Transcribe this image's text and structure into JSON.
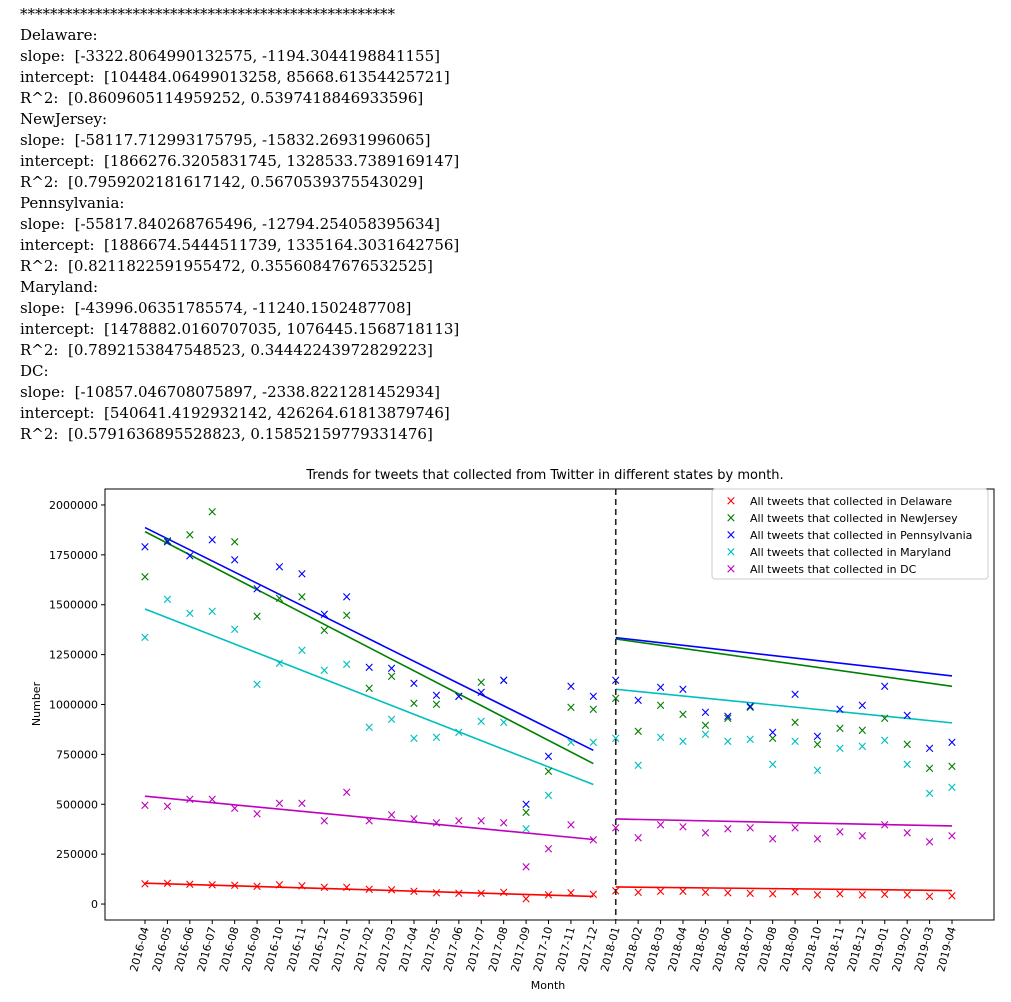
{
  "output": {
    "separator": "**************************************************",
    "blocks": [
      {
        "state": "Delaware:",
        "slope": "slope:  [-3322.8064990132575, -1194.3044198841155]",
        "intercept": "intercept:  [104484.06499013258, 85668.61354425721]",
        "r2": "R^2:  [0.8609605114959252, 0.5397418846933596]"
      },
      {
        "state": "NewJersey:",
        "slope": "slope:  [-58117.712993175795, -15832.26931996065]",
        "intercept": "intercept:  [1866276.3205831745, 1328533.7389169147]",
        "r2": "R^2:  [0.7959202181617142, 0.5670539375543029]"
      },
      {
        "state": "Pennsylvania:",
        "slope": "slope:  [-55817.840268765496, -12794.254058395634]",
        "intercept": "intercept:  [1886674.5444511739, 1335164.3031642756]",
        "r2": "R^2:  [0.8211822591955472, 0.35560847676532525]"
      },
      {
        "state": "Maryland:",
        "slope": "slope:  [-43996.06351785574, -11240.1502487708]",
        "intercept": "intercept:  [1478882.0160707035, 1076445.1568718113]",
        "r2": "R^2:  [0.7892153847548523, 0.34442243972829223]"
      },
      {
        "state": "DC:",
        "slope": "slope:  [-10857.046708075897, -2338.8221281452934]",
        "intercept": "intercept:  [540641.4192932142, 426264.61813879746]",
        "r2": "R^2:  [0.5791636895528823, 0.15852159779331476]"
      }
    ]
  },
  "chart_data": {
    "type": "scatter",
    "title": "Trends for tweets that collected from Twitter in different states by month.",
    "xlabel": "Month",
    "ylabel": "Number",
    "ylim": [
      -80000,
      2080000
    ],
    "yticks": [
      0,
      250000,
      500000,
      750000,
      1000000,
      1250000,
      1500000,
      1750000,
      2000000
    ],
    "ytick_labels": [
      "0",
      "250000",
      "500000",
      "750000",
      "1000000",
      "1250000",
      "1500000",
      "1750000",
      "2000000"
    ],
    "categories": [
      "2016-04",
      "2016-05",
      "2016-06",
      "2016-07",
      "2016-08",
      "2016-09",
      "2016-10",
      "2016-11",
      "2016-12",
      "2017-01",
      "2017-02",
      "2017-03",
      "2017-04",
      "2017-05",
      "2017-06",
      "2017-07",
      "2017-08",
      "2017-09",
      "2017-10",
      "2017-11",
      "2017-12",
      "2018-01",
      "2018-02",
      "2018-03",
      "2018-04",
      "2018-05",
      "2018-06",
      "2018-07",
      "2018-08",
      "2018-09",
      "2018-10",
      "2018-11",
      "2018-12",
      "2019-01",
      "2019-02",
      "2019-03",
      "2019-04"
    ],
    "split_index": 21,
    "legend_position": "top-right",
    "marker": "×",
    "series": [
      {
        "name": "All tweets that collected in Delaware",
        "color": "#ff0000",
        "values": [
          100000,
          103000,
          97000,
          95000,
          92000,
          88000,
          95000,
          90000,
          83000,
          82000,
          73000,
          71000,
          62000,
          55000,
          52000,
          52000,
          57000,
          25000,
          45000,
          55000,
          47000,
          65000,
          57000,
          62000,
          62000,
          58000,
          55000,
          52000,
          50000,
          60000,
          45000,
          50000,
          45000,
          48000,
          46000,
          38000,
          41000
        ],
        "fit": [
          {
            "slope": -3322.8064990132575,
            "intercept": 104484.06499013258
          },
          {
            "slope": -1194.3044198841155,
            "intercept": 85668.61354425721
          }
        ]
      },
      {
        "name": "All tweets that collected in NewJersey",
        "color": "#008000",
        "values": [
          1640000,
          1820000,
          1850000,
          1965000,
          1815000,
          1440000,
          1530000,
          1540000,
          1370000,
          1445000,
          1080000,
          1140000,
          1005000,
          1000000,
          1040000,
          1110000,
          1120000,
          460000,
          665000,
          985000,
          975000,
          1030000,
          865000,
          995000,
          950000,
          895000,
          930000,
          985000,
          830000,
          910000,
          800000,
          880000,
          870000,
          930000,
          800000,
          680000,
          690000
        ],
        "fit": [
          {
            "slope": -58117.712993175795,
            "intercept": 1866276.3205831745
          },
          {
            "slope": -15832.26931996065,
            "intercept": 1328533.7389169147
          }
        ]
      },
      {
        "name": "All tweets that collected in Pennsylvania",
        "color": "#0000ff",
        "values": [
          1790000,
          1815000,
          1745000,
          1825000,
          1725000,
          1580000,
          1690000,
          1655000,
          1450000,
          1540000,
          1185000,
          1180000,
          1105000,
          1045000,
          1040000,
          1060000,
          1120000,
          500000,
          740000,
          1090000,
          1040000,
          1120000,
          1020000,
          1085000,
          1075000,
          960000,
          940000,
          990000,
          860000,
          1050000,
          840000,
          975000,
          995000,
          1090000,
          945000,
          780000,
          810000
        ],
        "fit": [
          {
            "slope": -55817.840268765496,
            "intercept": 1886674.5444511739
          },
          {
            "slope": -12794.254058395634,
            "intercept": 1335164.3031642756
          }
        ]
      },
      {
        "name": "All tweets that collected in Maryland",
        "color": "#00bfbf",
        "values": [
          1335000,
          1525000,
          1455000,
          1465000,
          1375000,
          1100000,
          1205000,
          1270000,
          1170000,
          1200000,
          885000,
          925000,
          830000,
          835000,
          860000,
          915000,
          910000,
          375000,
          545000,
          810000,
          810000,
          830000,
          695000,
          835000,
          815000,
          850000,
          815000,
          825000,
          700000,
          815000,
          670000,
          780000,
          790000,
          820000,
          700000,
          555000,
          585000
        ],
        "fit": [
          {
            "slope": -43996.06351785574,
            "intercept": 1478882.0160707035
          },
          {
            "slope": -11240.1502487708,
            "intercept": 1076445.1568718113
          }
        ]
      },
      {
        "name": "All tweets that collected in DC",
        "color": "#bf00bf",
        "values": [
          495000,
          490000,
          525000,
          525000,
          480000,
          450000,
          505000,
          505000,
          415000,
          560000,
          415000,
          445000,
          425000,
          405000,
          415000,
          415000,
          405000,
          185000,
          275000,
          395000,
          320000,
          380000,
          330000,
          395000,
          385000,
          355000,
          375000,
          380000,
          325000,
          380000,
          325000,
          360000,
          340000,
          395000,
          355000,
          310000,
          340000
        ],
        "fit": [
          {
            "slope": -10857.046708075897,
            "intercept": 540641.4192932142
          },
          {
            "slope": -2338.8221281452934,
            "intercept": 426264.61813879746
          }
        ]
      }
    ]
  }
}
